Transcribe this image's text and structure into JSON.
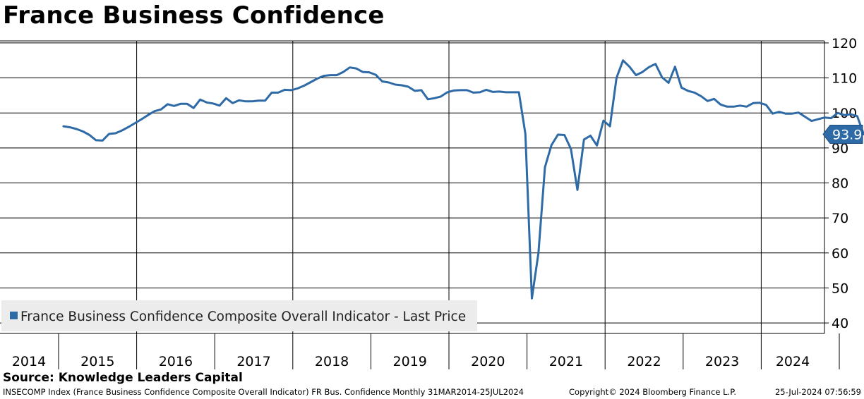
{
  "chart_data": {
    "type": "line",
    "title": "France Business Confidence",
    "legend": "France Business Confidence Composite Overall Indicator - Last Price",
    "legend_position": "bottom-left",
    "ylim": [
      37,
      123
    ],
    "y_ticks": [
      40,
      50,
      60,
      70,
      80,
      90,
      100,
      110,
      120
    ],
    "year_labels": [
      "2014",
      "2015",
      "2016",
      "2017",
      "2018",
      "2019",
      "2020",
      "2021",
      "2022",
      "2023",
      "2024"
    ],
    "last_value_label": "93.9",
    "line_color": "#2e6aa6",
    "start": "2014-03",
    "frequency": "monthly",
    "values": [
      96.2,
      95.9,
      95.4,
      94.7,
      93.7,
      92.2,
      92.1,
      94.0,
      94.2,
      95.0,
      96.0,
      97.1,
      98.2,
      99.4,
      100.5,
      101.0,
      102.5,
      102.0,
      102.6,
      102.6,
      101.4,
      103.8,
      103.0,
      102.7,
      102.1,
      104.2,
      102.8,
      103.6,
      103.3,
      103.3,
      103.5,
      103.5,
      105.8,
      105.8,
      106.6,
      106.5,
      107.0,
      107.8,
      108.8,
      109.8,
      110.6,
      110.8,
      110.8,
      111.7,
      113.0,
      112.7,
      111.7,
      111.6,
      110.9,
      109.0,
      108.7,
      108.1,
      107.9,
      107.5,
      106.3,
      106.5,
      103.9,
      104.2,
      104.7,
      105.9,
      106.4,
      106.5,
      106.5,
      105.8,
      105.9,
      106.6,
      106.0,
      106.1,
      105.9,
      105.9,
      105.9,
      94.0,
      47.0,
      60.0,
      84.5,
      90.8,
      93.8,
      93.7,
      89.7,
      78.0,
      92.4,
      93.5,
      90.7,
      97.8,
      96.2,
      110.0,
      115.0,
      113.2,
      110.8,
      111.7,
      113.1,
      114.0,
      110.2,
      108.6,
      113.2,
      107.2,
      106.3,
      105.8,
      104.8,
      103.4,
      104.0,
      102.4,
      101.8,
      101.8,
      102.1,
      101.8,
      102.8,
      102.9,
      102.3,
      99.8,
      100.3,
      99.8,
      99.8,
      100.1,
      98.9,
      97.7,
      98.2,
      98.7,
      98.5,
      100.0,
      99.4,
      99.6,
      99.1,
      93.9
    ]
  },
  "source": "Source: Knowledge Leaders Capital",
  "footer": {
    "left": "INSECOMP Index (France Business Confidence Composite Overall Indicator) FR Bus. Confidence  Monthly 31MAR2014-25JUL2024",
    "middle": "Copyright© 2024 Bloomberg Finance L.P.",
    "right": "25-Jul-2024 07:56:59"
  }
}
